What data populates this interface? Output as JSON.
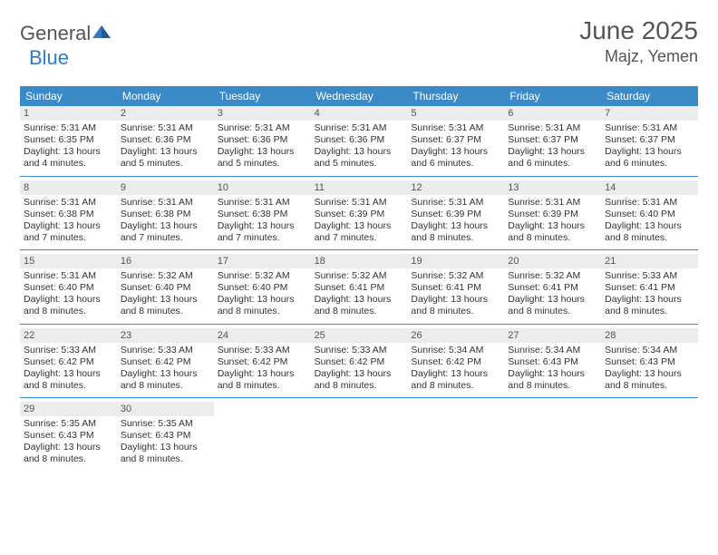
{
  "logo": {
    "general": "General",
    "blue": "Blue"
  },
  "title": "June 2025",
  "location": "Majz, Yemen",
  "colors": {
    "header_bg": "#3a8ac8",
    "header_text": "#ffffff",
    "daynum_bg": "#ececec",
    "border": "#3a8ac8",
    "logo_blue": "#2f7bc4",
    "text_gray": "#555555"
  },
  "dayNames": [
    "Sunday",
    "Monday",
    "Tuesday",
    "Wednesday",
    "Thursday",
    "Friday",
    "Saturday"
  ],
  "weeks": [
    [
      {
        "n": "1",
        "sr": "5:31 AM",
        "ss": "6:35 PM",
        "dl": "13 hours and 4 minutes."
      },
      {
        "n": "2",
        "sr": "5:31 AM",
        "ss": "6:36 PM",
        "dl": "13 hours and 5 minutes."
      },
      {
        "n": "3",
        "sr": "5:31 AM",
        "ss": "6:36 PM",
        "dl": "13 hours and 5 minutes."
      },
      {
        "n": "4",
        "sr": "5:31 AM",
        "ss": "6:36 PM",
        "dl": "13 hours and 5 minutes."
      },
      {
        "n": "5",
        "sr": "5:31 AM",
        "ss": "6:37 PM",
        "dl": "13 hours and 6 minutes."
      },
      {
        "n": "6",
        "sr": "5:31 AM",
        "ss": "6:37 PM",
        "dl": "13 hours and 6 minutes."
      },
      {
        "n": "7",
        "sr": "5:31 AM",
        "ss": "6:37 PM",
        "dl": "13 hours and 6 minutes."
      }
    ],
    [
      {
        "n": "8",
        "sr": "5:31 AM",
        "ss": "6:38 PM",
        "dl": "13 hours and 7 minutes."
      },
      {
        "n": "9",
        "sr": "5:31 AM",
        "ss": "6:38 PM",
        "dl": "13 hours and 7 minutes."
      },
      {
        "n": "10",
        "sr": "5:31 AM",
        "ss": "6:38 PM",
        "dl": "13 hours and 7 minutes."
      },
      {
        "n": "11",
        "sr": "5:31 AM",
        "ss": "6:39 PM",
        "dl": "13 hours and 7 minutes."
      },
      {
        "n": "12",
        "sr": "5:31 AM",
        "ss": "6:39 PM",
        "dl": "13 hours and 8 minutes."
      },
      {
        "n": "13",
        "sr": "5:31 AM",
        "ss": "6:39 PM",
        "dl": "13 hours and 8 minutes."
      },
      {
        "n": "14",
        "sr": "5:31 AM",
        "ss": "6:40 PM",
        "dl": "13 hours and 8 minutes."
      }
    ],
    [
      {
        "n": "15",
        "sr": "5:31 AM",
        "ss": "6:40 PM",
        "dl": "13 hours and 8 minutes."
      },
      {
        "n": "16",
        "sr": "5:32 AM",
        "ss": "6:40 PM",
        "dl": "13 hours and 8 minutes."
      },
      {
        "n": "17",
        "sr": "5:32 AM",
        "ss": "6:40 PM",
        "dl": "13 hours and 8 minutes."
      },
      {
        "n": "18",
        "sr": "5:32 AM",
        "ss": "6:41 PM",
        "dl": "13 hours and 8 minutes."
      },
      {
        "n": "19",
        "sr": "5:32 AM",
        "ss": "6:41 PM",
        "dl": "13 hours and 8 minutes."
      },
      {
        "n": "20",
        "sr": "5:32 AM",
        "ss": "6:41 PM",
        "dl": "13 hours and 8 minutes."
      },
      {
        "n": "21",
        "sr": "5:33 AM",
        "ss": "6:41 PM",
        "dl": "13 hours and 8 minutes."
      }
    ],
    [
      {
        "n": "22",
        "sr": "5:33 AM",
        "ss": "6:42 PM",
        "dl": "13 hours and 8 minutes."
      },
      {
        "n": "23",
        "sr": "5:33 AM",
        "ss": "6:42 PM",
        "dl": "13 hours and 8 minutes."
      },
      {
        "n": "24",
        "sr": "5:33 AM",
        "ss": "6:42 PM",
        "dl": "13 hours and 8 minutes."
      },
      {
        "n": "25",
        "sr": "5:33 AM",
        "ss": "6:42 PM",
        "dl": "13 hours and 8 minutes."
      },
      {
        "n": "26",
        "sr": "5:34 AM",
        "ss": "6:42 PM",
        "dl": "13 hours and 8 minutes."
      },
      {
        "n": "27",
        "sr": "5:34 AM",
        "ss": "6:43 PM",
        "dl": "13 hours and 8 minutes."
      },
      {
        "n": "28",
        "sr": "5:34 AM",
        "ss": "6:43 PM",
        "dl": "13 hours and 8 minutes."
      }
    ],
    [
      {
        "n": "29",
        "sr": "5:35 AM",
        "ss": "6:43 PM",
        "dl": "13 hours and 8 minutes."
      },
      {
        "n": "30",
        "sr": "5:35 AM",
        "ss": "6:43 PM",
        "dl": "13 hours and 8 minutes."
      },
      null,
      null,
      null,
      null,
      null
    ]
  ],
  "labels": {
    "sunrise": "Sunrise:",
    "sunset": "Sunset:",
    "daylight": "Daylight:"
  }
}
